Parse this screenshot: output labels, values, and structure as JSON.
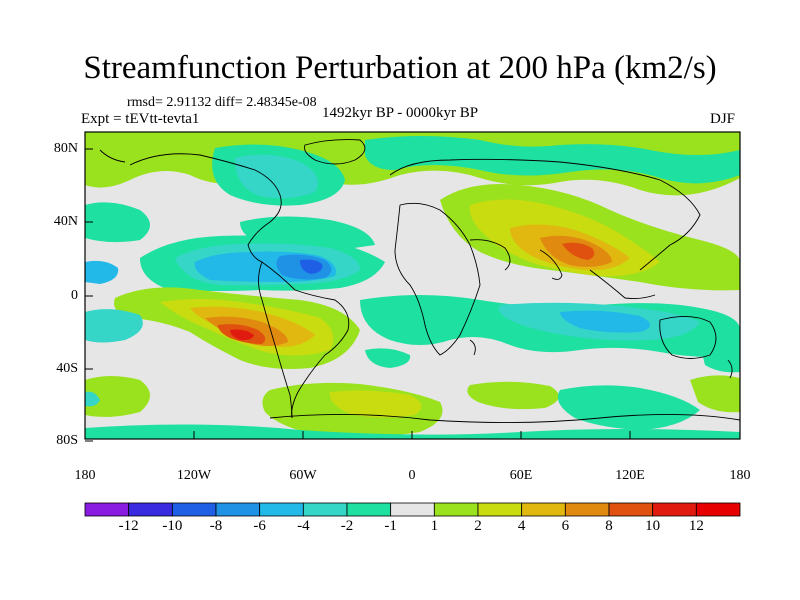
{
  "title": "Streamfunction Perturbation at 200 hPa (km2/s)",
  "stats_line": "rmsd= 2.91132 diff= 2.48345e-08",
  "experiment": "Expt = tEVtt-tevta1",
  "period": "1492kyr BP - 0000kyr BP",
  "season": "DJF",
  "lat_ticks": [
    "80N",
    "40N",
    "0",
    "40S",
    "80S"
  ],
  "lon_ticks": [
    "180",
    "120W",
    "60W",
    "0",
    "60E",
    "120E",
    "180"
  ],
  "colorbar": {
    "labels": [
      "-12",
      "-10",
      "-8",
      "-6",
      "-4",
      "-2",
      "-1",
      "1",
      "2",
      "4",
      "6",
      "8",
      "10",
      "12"
    ],
    "colors": [
      "#8a1be0",
      "#3a2ae0",
      "#1f5fe6",
      "#1f92e6",
      "#22b8e8",
      "#35d6c8",
      "#1ee0a0",
      "#e6e6e6",
      "#9be21e",
      "#c9dc10",
      "#e0b810",
      "#e08a10",
      "#e0500e",
      "#e01a0e",
      "#e60000"
    ]
  }
}
